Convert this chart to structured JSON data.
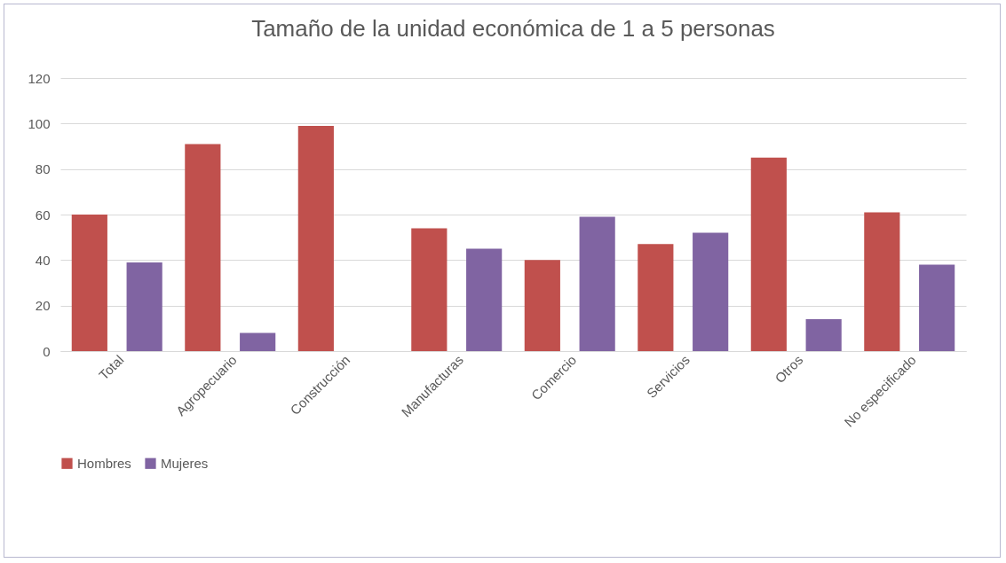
{
  "chart_data": {
    "type": "bar",
    "title": "Tamaño de la unidad económica de 1 a 5 personas",
    "categories": [
      "Total",
      "Agropecuario",
      "Construcción",
      "Manufacturas",
      "Comercio",
      "Servicios",
      "Otros",
      "No especificado"
    ],
    "series": [
      {
        "name": "Hombres",
        "color": "#c0504d",
        "values": [
          60,
          91,
          99,
          54,
          40,
          47,
          85,
          61
        ]
      },
      {
        "name": "Mujeres",
        "color": "#8064a2",
        "values": [
          39,
          8,
          0,
          45,
          59,
          52,
          14,
          38
        ]
      }
    ],
    "ylim": [
      0,
      120
    ],
    "yticks": [
      0,
      20,
      40,
      60,
      80,
      100,
      120
    ],
    "grid": "y",
    "legend": "bottom"
  }
}
